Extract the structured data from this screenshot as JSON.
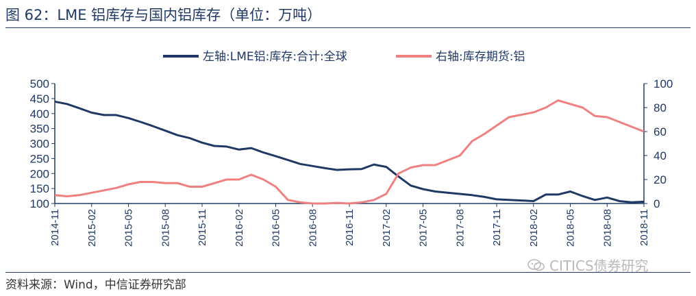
{
  "header": {
    "title": "图 62：LME 铝库存与国内铝库存（单位：万吨）"
  },
  "footer": {
    "source": "资料来源：Wind，中信证券研究部",
    "watermark": "CITICS债券研究"
  },
  "colors": {
    "navy": "#1f3864",
    "pink": "#f08080"
  },
  "chart_data": {
    "type": "line",
    "title": "",
    "x_ticks": [
      "2014-11",
      "2015-02",
      "2015-05",
      "2015-08",
      "2015-11",
      "2016-02",
      "2016-05",
      "2016-08",
      "2016-11",
      "2017-02",
      "2017-05",
      "2017-08",
      "2017-11",
      "2018-02",
      "2018-05",
      "2018-08",
      "2018-11"
    ],
    "y_left": {
      "min": 100,
      "max": 500,
      "ticks": [
        100,
        150,
        200,
        250,
        300,
        350,
        400,
        450,
        500
      ]
    },
    "y_right": {
      "min": 0,
      "max": 100,
      "ticks": [
        0,
        20,
        40,
        60,
        80,
        100
      ]
    },
    "legend_position": "top",
    "series": [
      {
        "name": "左轴:LME铝:库存:合计:全球",
        "axis": "left",
        "color": "#1f3864",
        "points": [
          [
            "2014-11",
            440
          ],
          [
            "2014-12",
            432
          ],
          [
            "2015-01",
            418
          ],
          [
            "2015-02",
            403
          ],
          [
            "2015-03",
            395
          ],
          [
            "2015-04",
            395
          ],
          [
            "2015-05",
            385
          ],
          [
            "2015-06",
            372
          ],
          [
            "2015-07",
            358
          ],
          [
            "2015-08",
            343
          ],
          [
            "2015-09",
            328
          ],
          [
            "2015-10",
            318
          ],
          [
            "2015-11",
            303
          ],
          [
            "2015-12",
            292
          ],
          [
            "2016-01",
            290
          ],
          [
            "2016-02",
            280
          ],
          [
            "2016-03",
            285
          ],
          [
            "2016-04",
            270
          ],
          [
            "2016-05",
            258
          ],
          [
            "2016-06",
            245
          ],
          [
            "2016-07",
            232
          ],
          [
            "2016-08",
            225
          ],
          [
            "2016-09",
            218
          ],
          [
            "2016-10",
            212
          ],
          [
            "2016-11",
            214
          ],
          [
            "2016-12",
            215
          ],
          [
            "2017-01",
            230
          ],
          [
            "2017-02",
            222
          ],
          [
            "2017-03",
            190
          ],
          [
            "2017-04",
            160
          ],
          [
            "2017-05",
            148
          ],
          [
            "2017-06",
            140
          ],
          [
            "2017-07",
            136
          ],
          [
            "2017-08",
            132
          ],
          [
            "2017-09",
            128
          ],
          [
            "2017-10",
            122
          ],
          [
            "2017-11",
            114
          ],
          [
            "2017-12",
            112
          ],
          [
            "2018-01",
            110
          ],
          [
            "2018-02",
            108
          ],
          [
            "2018-03",
            130
          ],
          [
            "2018-04",
            130
          ],
          [
            "2018-05",
            140
          ],
          [
            "2018-06",
            125
          ],
          [
            "2018-07",
            112
          ],
          [
            "2018-08",
            120
          ],
          [
            "2018-09",
            108
          ],
          [
            "2018-10",
            104
          ],
          [
            "2018-11",
            106
          ]
        ]
      },
      {
        "name": "右轴:库存期货:铝",
        "axis": "right",
        "color": "#f08080",
        "points": [
          [
            "2014-11",
            7
          ],
          [
            "2014-12",
            6
          ],
          [
            "2015-01",
            7
          ],
          [
            "2015-02",
            9
          ],
          [
            "2015-03",
            11
          ],
          [
            "2015-04",
            13
          ],
          [
            "2015-05",
            16
          ],
          [
            "2015-06",
            18
          ],
          [
            "2015-07",
            18
          ],
          [
            "2015-08",
            17
          ],
          [
            "2015-09",
            17
          ],
          [
            "2015-10",
            14
          ],
          [
            "2015-11",
            14
          ],
          [
            "2015-12",
            17
          ],
          [
            "2016-01",
            20
          ],
          [
            "2016-02",
            20
          ],
          [
            "2016-03",
            24
          ],
          [
            "2016-04",
            20
          ],
          [
            "2016-05",
            14
          ],
          [
            "2016-06",
            3
          ],
          [
            "2016-07",
            1
          ],
          [
            "2016-08",
            0
          ],
          [
            "2016-09",
            0
          ],
          [
            "2016-10",
            0.5
          ],
          [
            "2016-11",
            0
          ],
          [
            "2016-12",
            1
          ],
          [
            "2017-01",
            3
          ],
          [
            "2017-02",
            8
          ],
          [
            "2017-03",
            25
          ],
          [
            "2017-04",
            30
          ],
          [
            "2017-05",
            32
          ],
          [
            "2017-06",
            32
          ],
          [
            "2017-07",
            36
          ],
          [
            "2017-08",
            40
          ],
          [
            "2017-09",
            52
          ],
          [
            "2017-10",
            58
          ],
          [
            "2017-11",
            65
          ],
          [
            "2017-12",
            72
          ],
          [
            "2018-01",
            74
          ],
          [
            "2018-02",
            76
          ],
          [
            "2018-03",
            80
          ],
          [
            "2018-04",
            86
          ],
          [
            "2018-05",
            83
          ],
          [
            "2018-06",
            80
          ],
          [
            "2018-07",
            73
          ],
          [
            "2018-08",
            72
          ],
          [
            "2018-09",
            68
          ],
          [
            "2018-10",
            64
          ],
          [
            "2018-11",
            60
          ]
        ]
      }
    ]
  }
}
